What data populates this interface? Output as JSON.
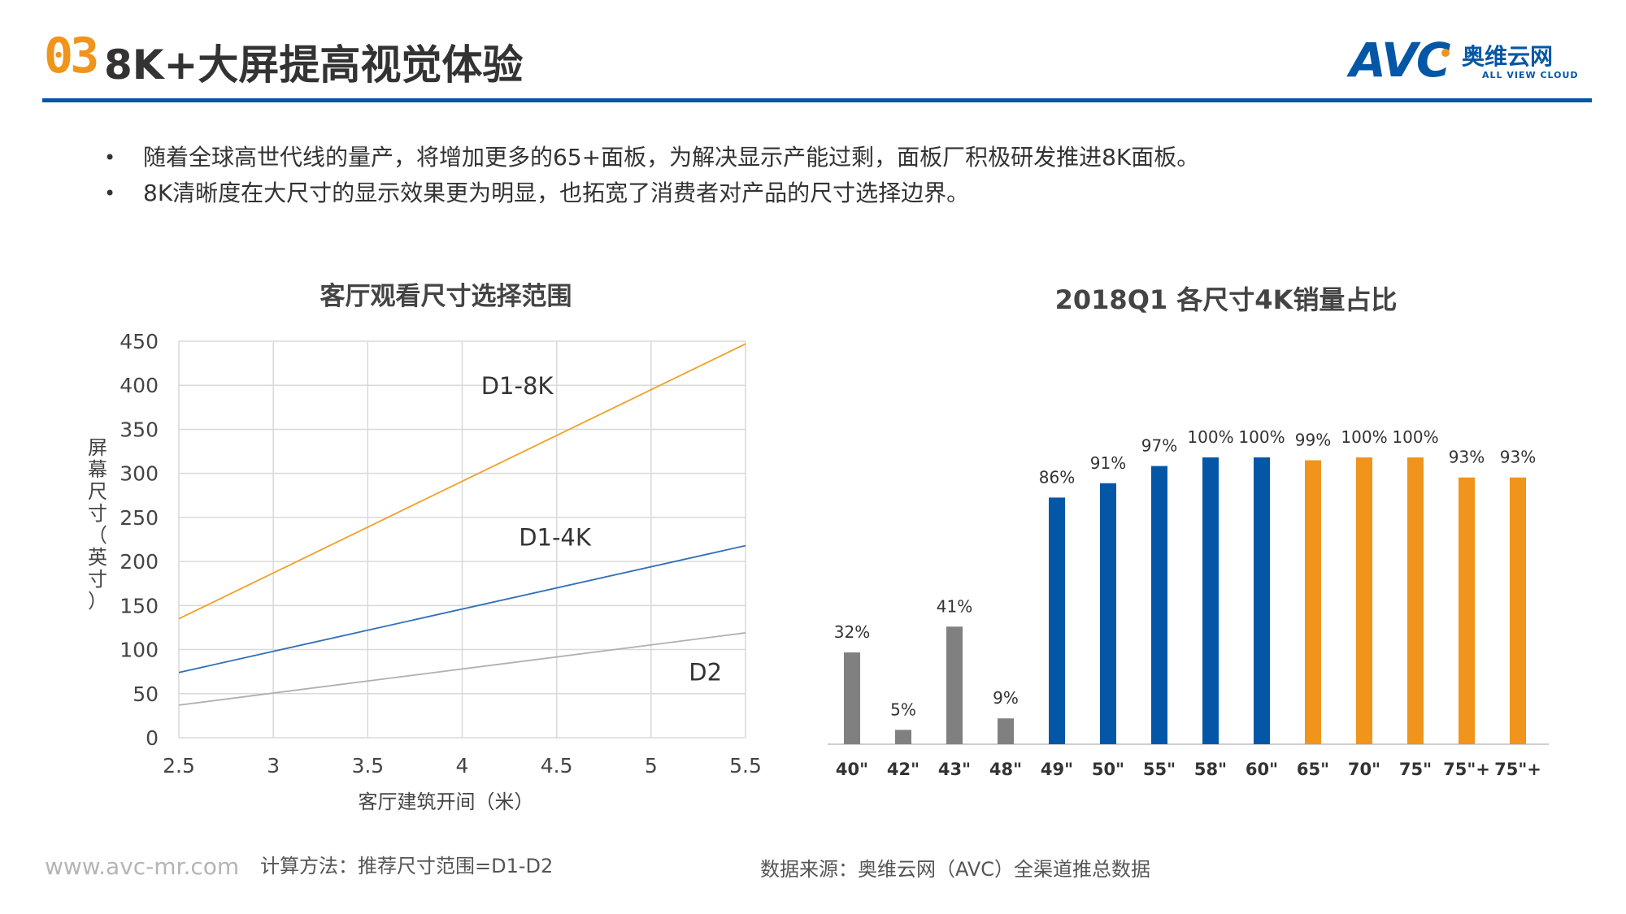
{
  "header": {
    "section_number": "03",
    "title": "8K+大屏提高视觉体验",
    "logo_text": "AVC",
    "logo_cn": "奥维云网",
    "logo_en": "ALL VIEW CLOUD",
    "rule_color": "#0457a6",
    "accent_color": "#f0941c"
  },
  "bullets": [
    "随着全球高世代线的量产，将增加更多的65+面板，为解决显示产能过剩，面板厂积极研发推进8K面板。",
    "8K清晰度在大尺寸的显示效果更为明显，也拓宽了消费者对产品的尺寸选择边界。"
  ],
  "footer": {
    "url": "www.avc-mr.com",
    "method": "计算方法：推荐尺寸范围=D1-D2",
    "source": "数据来源：奥维云网（AVC）全渠道推总数据"
  },
  "chart_data": [
    {
      "type": "line",
      "title": "客厅观看尺寸选择范围",
      "xlabel": "客厅建筑开间（米）",
      "ylabel": "屏幕尺寸（英寸）",
      "xlim": [
        2.5,
        5.5
      ],
      "ylim": [
        0,
        450
      ],
      "x_ticks": [
        "2.5",
        "3",
        "3.5",
        "4",
        "4.5",
        "5",
        "5.5"
      ],
      "y_ticks": [
        "0",
        "50",
        "100",
        "150",
        "200",
        "250",
        "300",
        "350",
        "400",
        "450"
      ],
      "grid": true,
      "series": [
        {
          "name": "D1-8K",
          "color": "#f0a02a",
          "x": [
            2.5,
            5.5
          ],
          "y": [
            135,
            447
          ]
        },
        {
          "name": "D1-4K",
          "color": "#2f6fb7",
          "x": [
            2.5,
            5.5
          ],
          "y": [
            74,
            218
          ]
        },
        {
          "name": "D2",
          "color": "#b0b0b0",
          "x": [
            2.5,
            5.5
          ],
          "y": [
            37,
            119
          ]
        }
      ]
    },
    {
      "type": "bar",
      "title": "2018Q1 各尺寸4K销量占比",
      "categories": [
        "40\"",
        "42\"",
        "43\"",
        "48\"",
        "49\"",
        "50\"",
        "55\"",
        "58\"",
        "60\"",
        "65\"",
        "70\"",
        "75\"",
        "75\"+",
        "75\"+"
      ],
      "values": [
        32,
        5,
        41,
        9,
        86,
        91,
        97,
        100,
        100,
        99,
        100,
        100,
        93,
        93
      ],
      "labels": [
        "32%",
        "5%",
        "41%",
        "9%",
        "86%",
        "91%",
        "97%",
        "100%",
        "100%",
        "99%",
        "100%",
        "100%",
        "93%",
        "93%"
      ],
      "colors": [
        "#808080",
        "#808080",
        "#808080",
        "#808080",
        "#0457a6",
        "#0457a6",
        "#0457a6",
        "#0457a6",
        "#0457a6",
        "#f0941c",
        "#f0941c",
        "#f0941c",
        "#f0941c",
        "#f0941c"
      ],
      "ylim": [
        0,
        100
      ]
    }
  ]
}
